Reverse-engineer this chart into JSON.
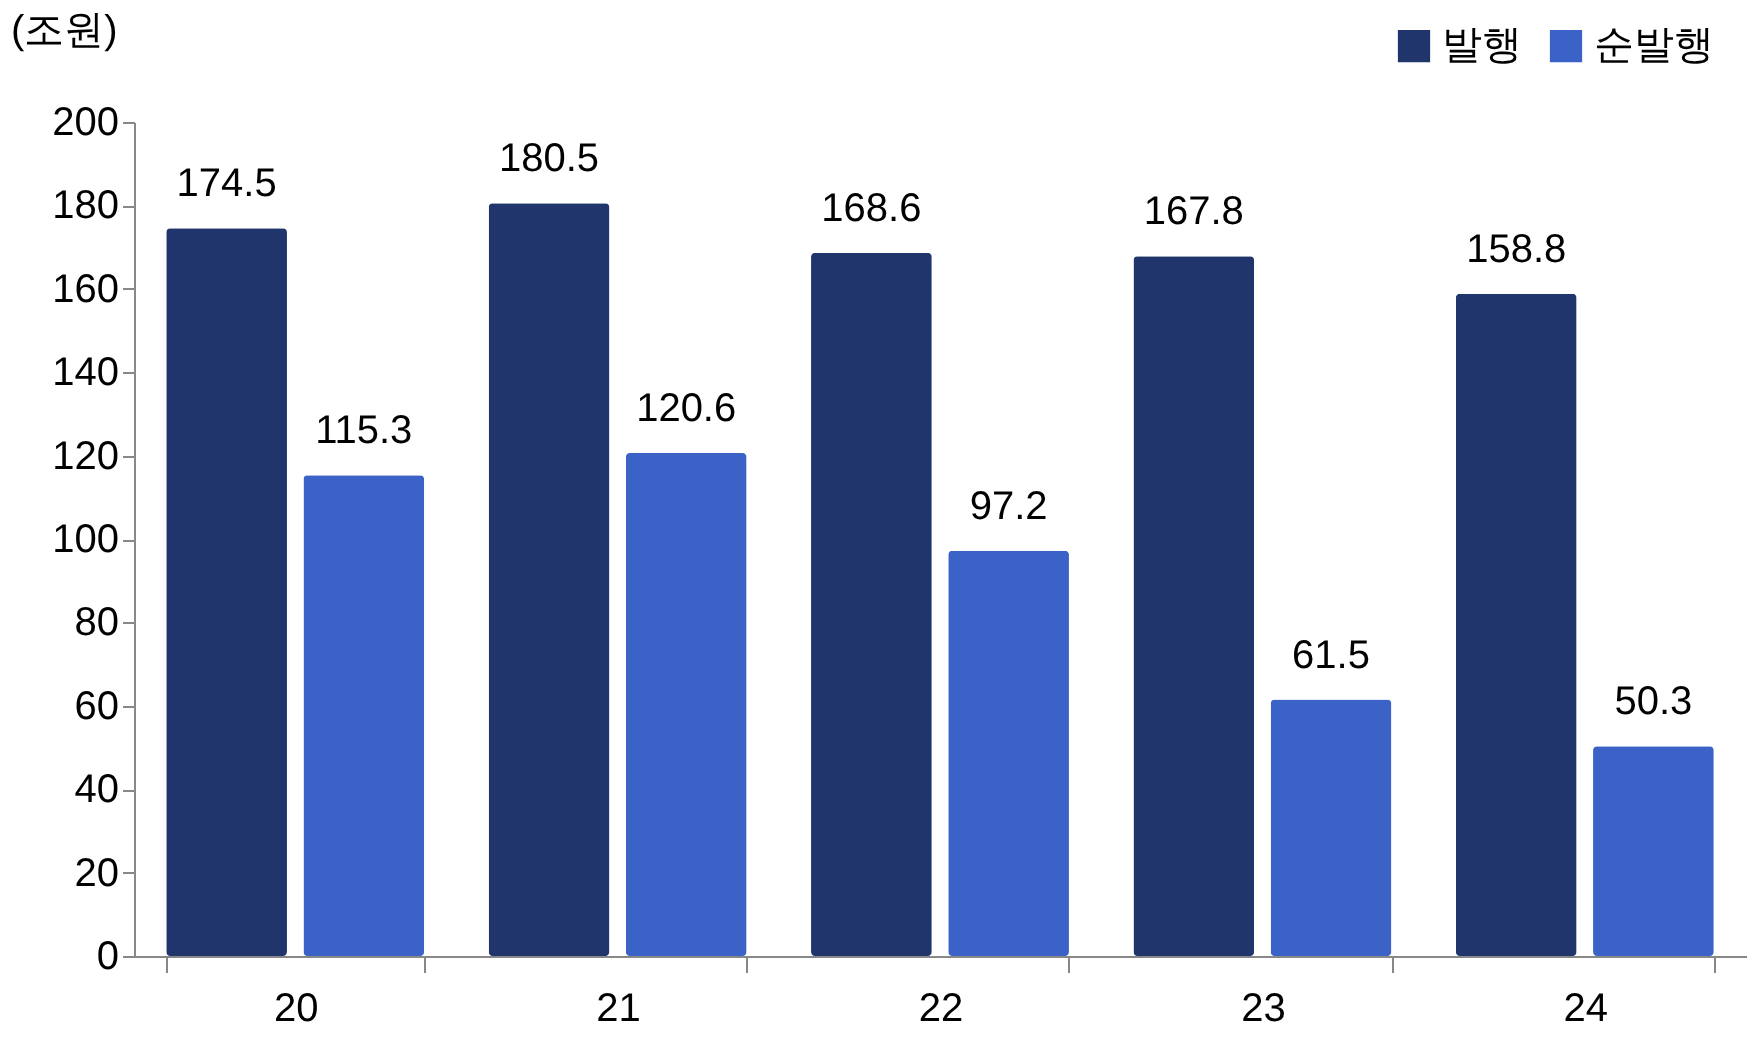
{
  "chart_data": {
    "type": "bar",
    "ylabel": "(조원)",
    "categories": [
      "20",
      "21",
      "22",
      "23",
      "24"
    ],
    "series": [
      {
        "name": "발행",
        "color": "#1f356b",
        "values": [
          174.5,
          180.5,
          168.6,
          167.8,
          158.8
        ]
      },
      {
        "name": "순발행",
        "color": "#3a62c7",
        "values": [
          115.3,
          120.6,
          97.2,
          61.5,
          50.3
        ]
      }
    ],
    "ylim": [
      0,
      200
    ],
    "yticks": [
      0,
      20,
      40,
      60,
      80,
      100,
      120,
      140,
      160,
      180,
      200
    ],
    "grid": false,
    "legend": "top right",
    "data_labels": true
  }
}
